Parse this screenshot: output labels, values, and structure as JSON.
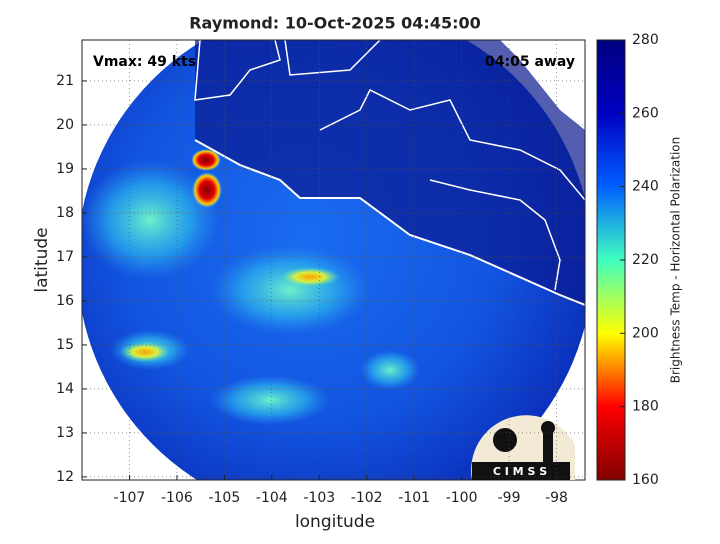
{
  "chart_data": {
    "type": "image",
    "title": "Raymond: 10-Oct-2025 04:45:00",
    "annotations": [
      "Vmax: 49 kts",
      "04:05 away"
    ],
    "logo_text": "C I M S S",
    "xlabel": "longitude",
    "ylabel": "latitude",
    "xlim": [
      -108,
      -97.4
    ],
    "xticks": [
      -107,
      -106,
      -105,
      -104,
      -103,
      -102,
      -101,
      -100,
      -99,
      -98
    ],
    "ylim": [
      11.93,
      21.93
    ],
    "yticks": [
      12,
      13,
      14,
      15,
      16,
      17,
      18,
      19,
      20,
      21
    ],
    "grid": true,
    "colorbar": {
      "label": "Brightness Temp - Horizontal Polarization",
      "lim": [
        160,
        280
      ],
      "ticks": [
        160,
        180,
        200,
        220,
        240,
        260,
        280
      ],
      "colors": [
        "#800000",
        "#ff0000",
        "#ffff00",
        "#40ffc0",
        "#0060ff",
        "#0000c0",
        "#000080"
      ]
    }
  }
}
